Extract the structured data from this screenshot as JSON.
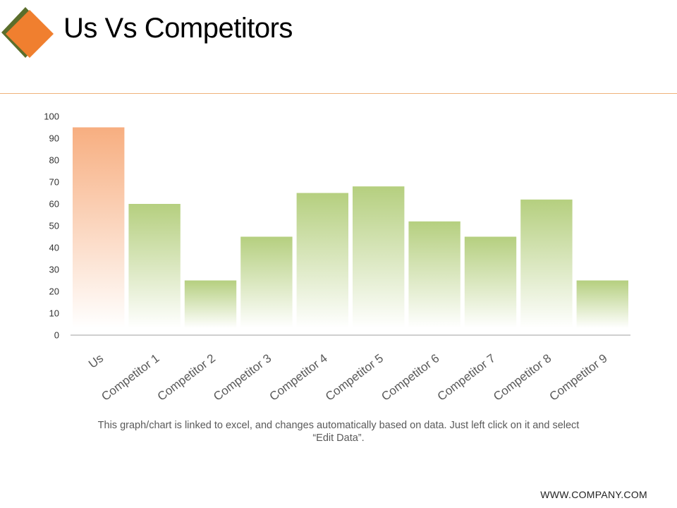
{
  "page": {
    "title": "Us Vs Competitors",
    "note": "This graph/chart is linked to excel, and changes automatically based on data. Just left click on it and select “Edit Data”.",
    "footer": "WWW.COMPANY.COM"
  },
  "colors": {
    "accent": "#f07f2f",
    "logo_back": "#5b6e2b",
    "us_bar": "#f7ae80",
    "competitor_bar": "#b5cf7f",
    "divider": "#f0b27a"
  },
  "chart_data": {
    "type": "bar",
    "title": "",
    "xlabel": "",
    "ylabel": "",
    "categories": [
      "Us",
      "Competitor 1",
      "Competitor 2",
      "Competitor 3",
      "Competitor 4",
      "Competitor 5",
      "Competitor 6",
      "Competitor 7",
      "Competitor 8",
      "Competitor 9"
    ],
    "values": [
      95,
      60,
      25,
      45,
      65,
      68,
      52,
      45,
      62,
      25
    ],
    "ylim": [
      0,
      100
    ],
    "yticks": [
      0,
      10,
      20,
      30,
      40,
      50,
      60,
      70,
      80,
      90,
      100
    ],
    "grid": false,
    "legend": "none"
  }
}
